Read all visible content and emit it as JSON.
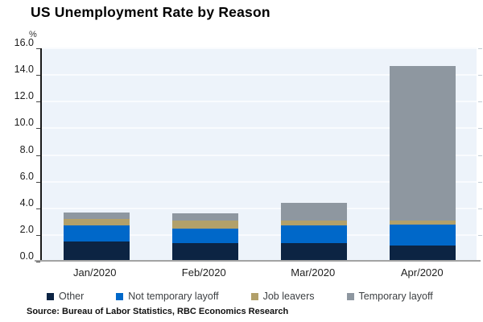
{
  "title": "US Unemployment Rate by Reason",
  "y_axis": {
    "unit_label": "%",
    "ticks": [
      "16.0",
      "14.0",
      "12.0",
      "10.0",
      "8.0",
      "6.0",
      "4.0",
      "2.0",
      "0.0"
    ],
    "max": 16.0
  },
  "source": "Source: Bureau of Labor Statistics, RBC Economics Research",
  "colors": {
    "other": "#0c2443",
    "not_temporary_layoff": "#0068c9",
    "job_leavers": "#b2a06a",
    "temporary_layoff": "#8e97a0",
    "plot_background": "#edf3fa",
    "gridline": "#f9fbfe",
    "x_axis_line": "#a3a3a3",
    "y_axis_line": "#1a1a1a"
  },
  "chart_data": {
    "type": "bar",
    "stacked": true,
    "title": "US Unemployment Rate by Reason",
    "ylabel": "%",
    "ylim": [
      0,
      16
    ],
    "grid": true,
    "legend_position": "bottom",
    "categories": [
      "Jan/2020",
      "Feb/2020",
      "Mar/2020",
      "Apr/2020"
    ],
    "series": [
      {
        "name": "Other",
        "color": "#0c2443",
        "values": [
          1.5,
          1.4,
          1.4,
          1.2
        ]
      },
      {
        "name": "Not temporary layoff",
        "color": "#0068c9",
        "values": [
          1.2,
          1.1,
          1.3,
          1.6
        ]
      },
      {
        "name": "Job leavers",
        "color": "#b2a06a",
        "values": [
          0.5,
          0.6,
          0.4,
          0.3
        ]
      },
      {
        "name": "Temporary layoff",
        "color": "#8e97a0",
        "values": [
          0.5,
          0.5,
          1.3,
          11.6
        ]
      }
    ],
    "totals": [
      3.7,
      3.6,
      4.4,
      14.7
    ]
  }
}
